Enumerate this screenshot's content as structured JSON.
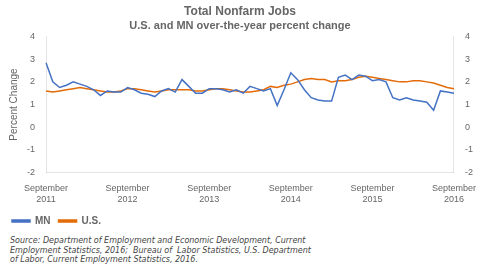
{
  "chart_data": {
    "type": "line",
    "title": "Total Nonfarm Jobs",
    "subtitle": "U.S. and MN over-the-year percent change",
    "ylabel": "Percent Change",
    "source": "Source: Department of Employment and Economic Development, Current\nEmployment Statistics, 2016;  Bureau of  Labor Statistics, U.S. Department\nof Labor, Current Employment Statistics, 2016.",
    "categories": [
      "September\n2011",
      null,
      null,
      null,
      null,
      null,
      null,
      null,
      null,
      null,
      null,
      null,
      "September\n2012",
      null,
      null,
      null,
      null,
      null,
      null,
      null,
      null,
      null,
      null,
      null,
      "September\n2013",
      null,
      null,
      null,
      null,
      null,
      null,
      null,
      null,
      null,
      null,
      null,
      "September\n2014",
      null,
      null,
      null,
      null,
      null,
      null,
      null,
      null,
      null,
      null,
      null,
      "September\n2015",
      null,
      null,
      null,
      null,
      null,
      null,
      null,
      null,
      null,
      null,
      null,
      "September\n2016"
    ],
    "series": [
      {
        "name": "MN",
        "color": "#4472C4",
        "values": [
          2.85,
          2.0,
          1.75,
          1.85,
          2.0,
          1.9,
          1.8,
          1.65,
          1.4,
          1.6,
          1.55,
          1.55,
          1.75,
          1.65,
          1.5,
          1.45,
          1.35,
          1.6,
          1.7,
          1.55,
          2.1,
          1.8,
          1.5,
          1.5,
          1.7,
          1.7,
          1.65,
          1.55,
          1.65,
          1.5,
          1.8,
          1.7,
          1.6,
          1.7,
          0.95,
          1.65,
          2.4,
          2.1,
          1.65,
          1.3,
          1.2,
          1.15,
          1.15,
          2.2,
          2.3,
          2.1,
          2.3,
          2.25,
          2.05,
          2.1,
          2.0,
          1.3,
          1.2,
          1.3,
          1.2,
          1.15,
          1.1,
          0.75,
          1.6,
          1.55,
          1.5
        ]
      },
      {
        "name": "U.S.",
        "color": "#E36C09",
        "values": [
          1.6,
          1.55,
          1.6,
          1.65,
          1.7,
          1.75,
          1.7,
          1.65,
          1.6,
          1.55,
          1.55,
          1.6,
          1.7,
          1.7,
          1.65,
          1.6,
          1.55,
          1.6,
          1.65,
          1.65,
          1.65,
          1.65,
          1.6,
          1.6,
          1.65,
          1.7,
          1.7,
          1.65,
          1.6,
          1.55,
          1.55,
          1.6,
          1.65,
          1.8,
          1.75,
          1.85,
          1.9,
          2.0,
          2.1,
          2.15,
          2.1,
          2.1,
          2.0,
          2.05,
          2.05,
          2.1,
          2.2,
          2.25,
          2.2,
          2.15,
          2.1,
          2.05,
          2.0,
          2.0,
          2.05,
          2.05,
          2.0,
          1.95,
          1.85,
          1.75,
          1.7
        ]
      }
    ],
    "ylim": [
      -2,
      4
    ],
    "yticks": [
      -2,
      -1,
      0,
      1,
      2,
      3,
      4
    ],
    "y2lim": [
      -2,
      4
    ],
    "y2ticks": [
      -2,
      -1,
      0,
      1,
      2,
      3,
      4
    ],
    "legend": "lower left",
    "grid": false
  }
}
